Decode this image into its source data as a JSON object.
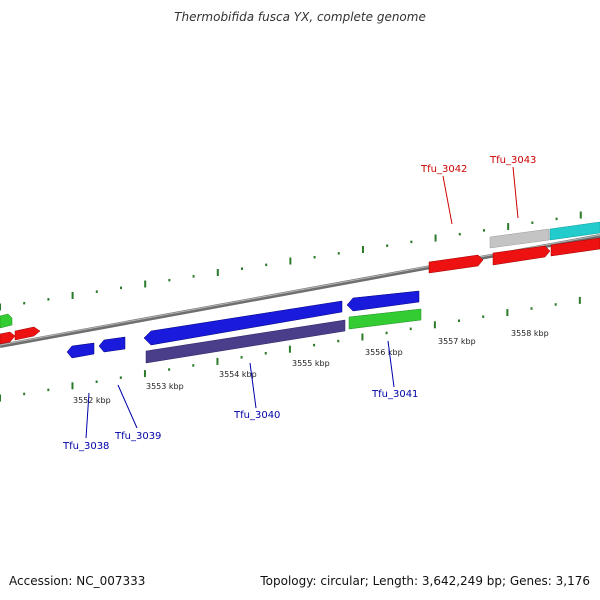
{
  "title": "Thermobifida fusca YX, complete genome",
  "footer": {
    "accession": "Accession: NC_007333",
    "topology": "Topology: circular; Length: 3,642,249 bp; Genes: 3,176"
  },
  "colors": {
    "backbone": "#7a7a7a",
    "tick": "#2a7a2a",
    "forward_label": "#cc0000",
    "reverse_label": "#0000aa",
    "red": "#ee1111",
    "blue": "#1a1add",
    "green": "#33cc33",
    "purple": "#4a3e8a",
    "gray": "#c4c4c4",
    "cyan": "#22cccc"
  },
  "ticks": [
    {
      "label": "3552 kbp"
    },
    {
      "label": "3553 kbp"
    },
    {
      "label": "3554 kbp"
    },
    {
      "label": "3555 kbp"
    },
    {
      "label": "3556 kbp"
    },
    {
      "label": "3557 kbp"
    },
    {
      "label": "3558 kbp"
    }
  ],
  "gene_labels": [
    {
      "text": "Tfu_3042",
      "strand": "forward"
    },
    {
      "text": "Tfu_3043",
      "strand": "forward"
    },
    {
      "text": "Tfu_3038",
      "strand": "reverse"
    },
    {
      "text": "Tfu_3039",
      "strand": "reverse"
    },
    {
      "text": "Tfu_3040",
      "strand": "reverse"
    },
    {
      "text": "Tfu_3041",
      "strand": "reverse"
    }
  ]
}
